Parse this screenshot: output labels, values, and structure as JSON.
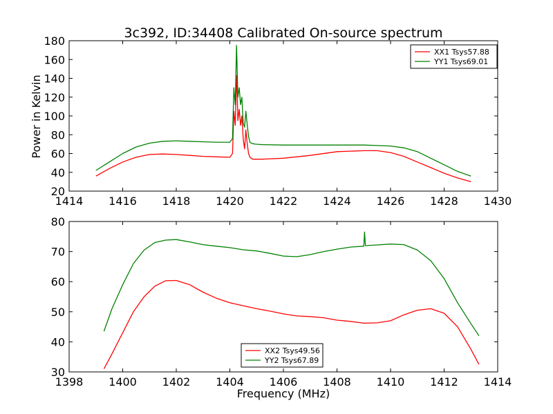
{
  "figure": {
    "title": "3c392, ID:34408 Calibrated On-source spectrum",
    "ylabel": "Power in Kelvin",
    "xlabel": "Frequency (MHz)"
  },
  "colors": {
    "red": "#ff0000",
    "green": "#008000"
  },
  "chart_data": [
    {
      "type": "line",
      "title": "3c392, ID:34408 Calibrated On-source spectrum",
      "ylabel": "Power in Kelvin",
      "xlabel": "",
      "xlim": [
        1414,
        1430
      ],
      "ylim": [
        20,
        180
      ],
      "xticks": [
        1414,
        1416,
        1418,
        1420,
        1422,
        1424,
        1426,
        1428,
        1430
      ],
      "yticks": [
        20,
        40,
        60,
        80,
        100,
        120,
        140,
        160,
        180
      ],
      "legend_position": "upper right",
      "series": [
        {
          "name": "XX1 Tsys57.88",
          "color": "#ff0000",
          "x": [
            1415.0,
            1415.5,
            1416.0,
            1416.5,
            1417.0,
            1417.5,
            1418.0,
            1418.5,
            1419.0,
            1419.5,
            1420.0,
            1420.1,
            1420.15,
            1420.2,
            1420.25,
            1420.28,
            1420.3,
            1420.35,
            1420.4,
            1420.45,
            1420.5,
            1420.55,
            1420.6,
            1420.65,
            1420.7,
            1420.75,
            1420.8,
            1420.85,
            1420.95,
            1421.2,
            1422.0,
            1423.0,
            1424.0,
            1425.0,
            1425.5,
            1426.0,
            1426.5,
            1427.0,
            1427.5,
            1428.0,
            1428.5,
            1429.0
          ],
          "y": [
            36,
            44,
            51,
            56,
            59,
            59.5,
            59,
            58,
            57,
            56.5,
            56,
            60,
            105,
            90,
            143,
            120,
            95,
            107,
            90,
            100,
            75,
            65,
            85,
            70,
            60,
            56,
            55,
            54,
            54,
            54,
            55,
            58,
            62,
            63,
            63,
            61,
            57,
            51,
            45,
            39,
            34,
            30
          ]
        },
        {
          "name": "YY1 Tsys69.01",
          "color": "#008000",
          "x": [
            1415.0,
            1415.5,
            1416.0,
            1416.5,
            1417.0,
            1417.5,
            1418.0,
            1418.5,
            1419.0,
            1419.5,
            1420.0,
            1420.1,
            1420.15,
            1420.2,
            1420.25,
            1420.28,
            1420.3,
            1420.35,
            1420.4,
            1420.45,
            1420.5,
            1420.55,
            1420.6,
            1420.65,
            1420.7,
            1420.75,
            1420.8,
            1420.85,
            1420.95,
            1421.2,
            1422.0,
            1423.0,
            1424.0,
            1425.0,
            1425.5,
            1426.0,
            1426.5,
            1427.0,
            1427.5,
            1428.0,
            1428.5,
            1429.0
          ],
          "y": [
            42,
            51,
            60,
            67,
            71,
            73,
            73.5,
            73,
            72.5,
            72,
            72,
            76,
            130,
            112,
            175,
            145,
            120,
            130,
            112,
            120,
            92,
            88,
            105,
            90,
            78,
            72,
            71,
            70.5,
            70,
            69.5,
            69,
            69,
            69,
            69,
            68.5,
            68,
            66,
            62,
            55,
            48,
            41,
            36
          ]
        }
      ]
    },
    {
      "type": "line",
      "title": "",
      "ylabel": "",
      "xlabel": "Frequency (MHz)",
      "xlim": [
        1398,
        1414
      ],
      "ylim": [
        30,
        80
      ],
      "xticks": [
        1398,
        1400,
        1402,
        1404,
        1406,
        1408,
        1410,
        1412,
        1414
      ],
      "yticks": [
        30,
        40,
        50,
        60,
        70,
        80
      ],
      "legend_position": "lower center",
      "series": [
        {
          "name": "XX2 Tsys49.56",
          "color": "#ff0000",
          "x": [
            1399.3,
            1399.6,
            1400.0,
            1400.4,
            1400.8,
            1401.2,
            1401.6,
            1402.0,
            1402.5,
            1403.0,
            1403.5,
            1404.0,
            1404.5,
            1405.0,
            1405.5,
            1406.0,
            1406.5,
            1407.0,
            1407.5,
            1408.0,
            1408.5,
            1409.0,
            1409.5,
            1410.0,
            1410.5,
            1411.0,
            1411.5,
            1412.0,
            1412.5,
            1413.0,
            1413.3
          ],
          "y": [
            31,
            36,
            43,
            50,
            55,
            58.5,
            60.3,
            60.4,
            59,
            56.5,
            54.5,
            53,
            52,
            51,
            50.2,
            49.3,
            48.6,
            48.4,
            48,
            47.2,
            46.8,
            46.2,
            46.3,
            47,
            49,
            50.5,
            51,
            49.5,
            45,
            37.5,
            32.5
          ]
        },
        {
          "name": "YY2 Tsys67.89",
          "color": "#008000",
          "x": [
            1399.3,
            1399.6,
            1400.0,
            1400.4,
            1400.8,
            1401.2,
            1401.6,
            1402.0,
            1402.5,
            1403.0,
            1403.5,
            1404.0,
            1404.5,
            1405.0,
            1405.5,
            1406.0,
            1406.5,
            1407.0,
            1407.5,
            1408.0,
            1408.5,
            1409.0,
            1409.03,
            1409.06,
            1409.09,
            1409.5,
            1410.0,
            1410.5,
            1411.0,
            1411.5,
            1412.0,
            1412.5,
            1413.0,
            1413.3
          ],
          "y": [
            43.5,
            51,
            59,
            66,
            70.5,
            73,
            73.8,
            74,
            73.2,
            72.3,
            71.8,
            71.3,
            70.6,
            70.2,
            69.4,
            68.5,
            68.3,
            69,
            70,
            70.8,
            71.5,
            71.8,
            76.5,
            72,
            72,
            72.2,
            72.5,
            72.3,
            70.5,
            67,
            61,
            53,
            46,
            42
          ]
        }
      ]
    }
  ]
}
